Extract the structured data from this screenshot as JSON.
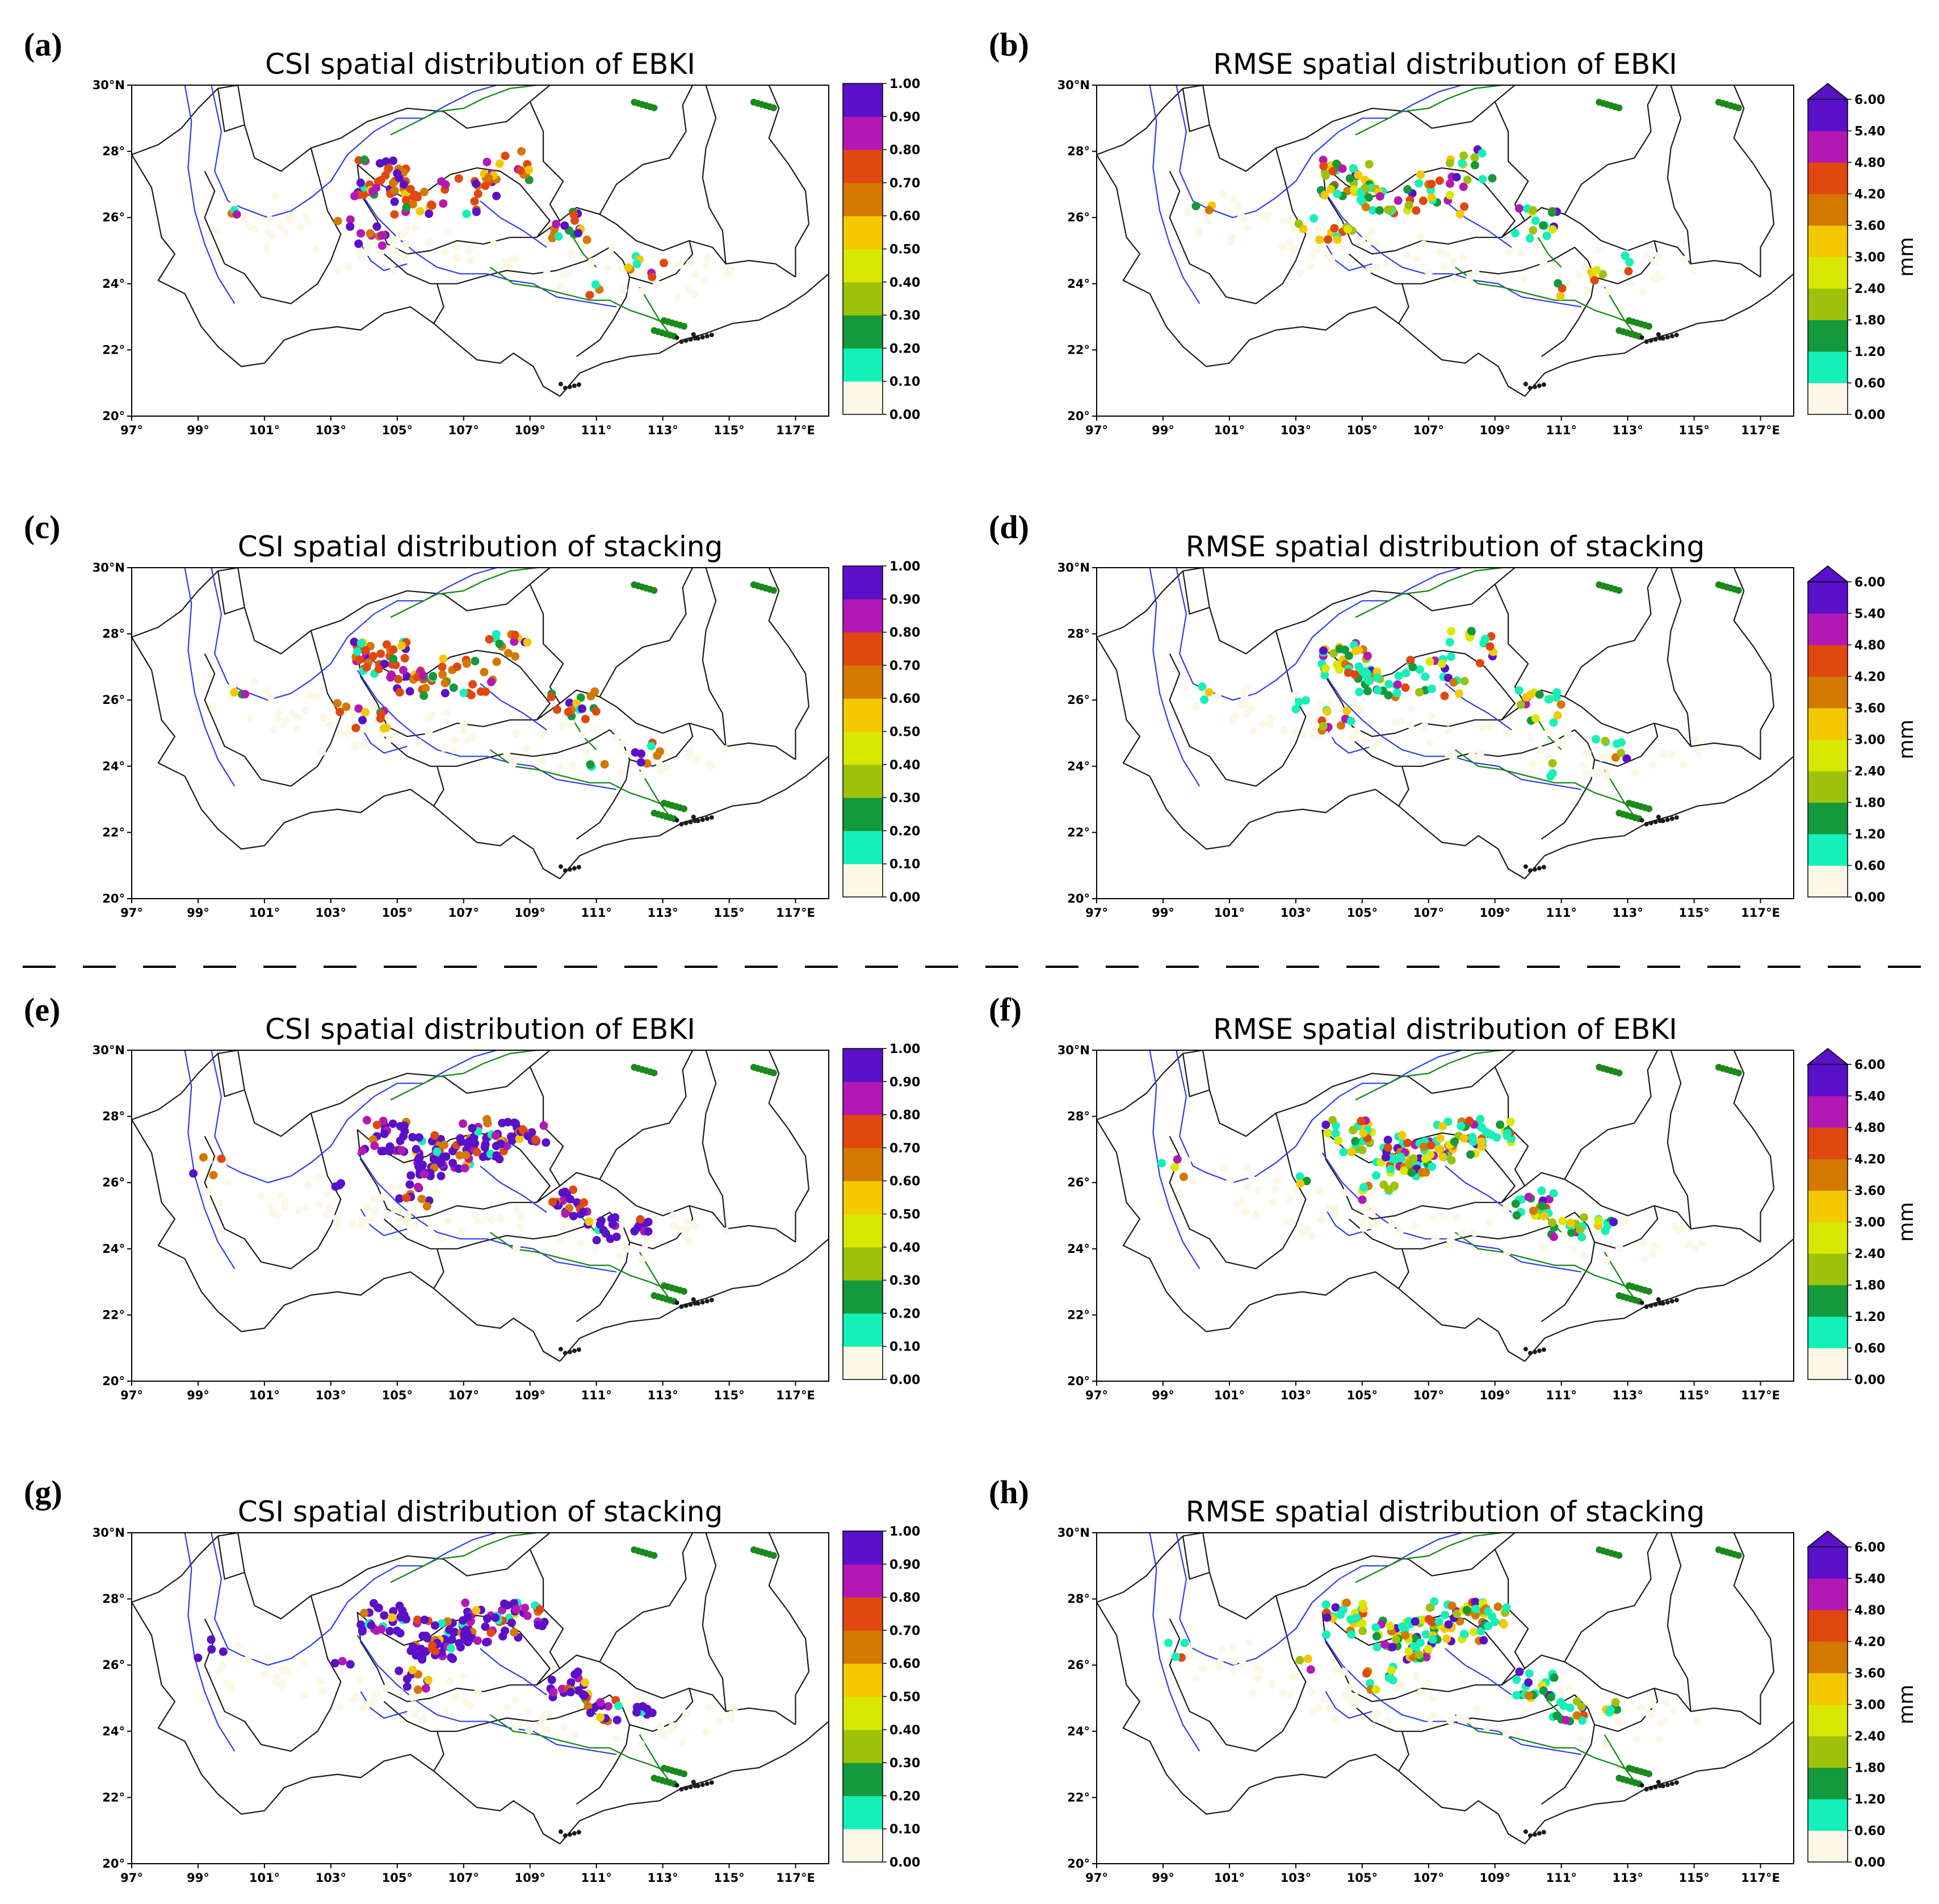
{
  "figure": {
    "separator": "dashed-line",
    "lon_ticks": [
      "97°",
      "99°",
      "101°",
      "103°",
      "105°",
      "107°",
      "109°",
      "111°",
      "113°",
      "115°",
      "117°E"
    ],
    "lat_ticks": [
      "20°",
      "22°",
      "24°",
      "26°",
      "28°",
      "30°N"
    ],
    "lon_values": [
      97,
      99,
      101,
      103,
      105,
      107,
      109,
      111,
      113,
      115,
      117
    ],
    "lat_values": [
      20,
      22,
      24,
      26,
      28,
      30
    ],
    "lon_range": [
      97,
      118
    ],
    "lat_range": [
      20,
      30
    ],
    "colors": {
      "river": "#2b3cf0",
      "coast": "#1a8a1a",
      "border": "#1a1a1a",
      "bins": [
        "#fbf8e8",
        "#14f0b8",
        "#149a3c",
        "#9ec20a",
        "#d8e800",
        "#f4c800",
        "#d47800",
        "#e04810",
        "#b418b4",
        "#5a10c8"
      ]
    },
    "csi_colorbar": {
      "labels": [
        "0.00",
        "0.10",
        "0.20",
        "0.30",
        "0.40",
        "0.50",
        "0.60",
        "0.70",
        "0.80",
        "0.90",
        "1.00"
      ],
      "unit": "",
      "extend": "neither"
    },
    "rmse_colorbar": {
      "labels": [
        "0.00",
        "0.60",
        "1.20",
        "1.80",
        "2.40",
        "3.00",
        "3.60",
        "4.20",
        "4.80",
        "5.40",
        "6.00"
      ],
      "unit": "mm",
      "extend": "max"
    }
  },
  "panels": [
    {
      "letter": "(a)",
      "title": "CSI spatial distribution of EBKI",
      "metric": "csi",
      "set": 1,
      "seed": 11
    },
    {
      "letter": "(b)",
      "title": "RMSE spatial distribution of EBKI",
      "metric": "rmse",
      "set": 1,
      "seed": 12
    },
    {
      "letter": "(c)",
      "title": "CSI spatial distribution of stacking",
      "metric": "csi",
      "set": 1,
      "seed": 13
    },
    {
      "letter": "(d)",
      "title": "RMSE spatial distribution of stacking",
      "metric": "rmse",
      "set": 1,
      "seed": 14
    },
    {
      "letter": "(e)",
      "title": "CSI spatial distribution of EBKI",
      "metric": "csi",
      "set": 2,
      "seed": 15
    },
    {
      "letter": "(f)",
      "title": "RMSE spatial distribution of EBKI",
      "metric": "rmse",
      "set": 2,
      "seed": 16
    },
    {
      "letter": "(g)",
      "title": "CSI spatial distribution of stacking",
      "metric": "csi",
      "set": 2,
      "seed": 17
    },
    {
      "letter": "(h)",
      "title": "RMSE spatial distribution of stacking",
      "metric": "rmse",
      "set": 2,
      "seed": 18
    }
  ]
}
